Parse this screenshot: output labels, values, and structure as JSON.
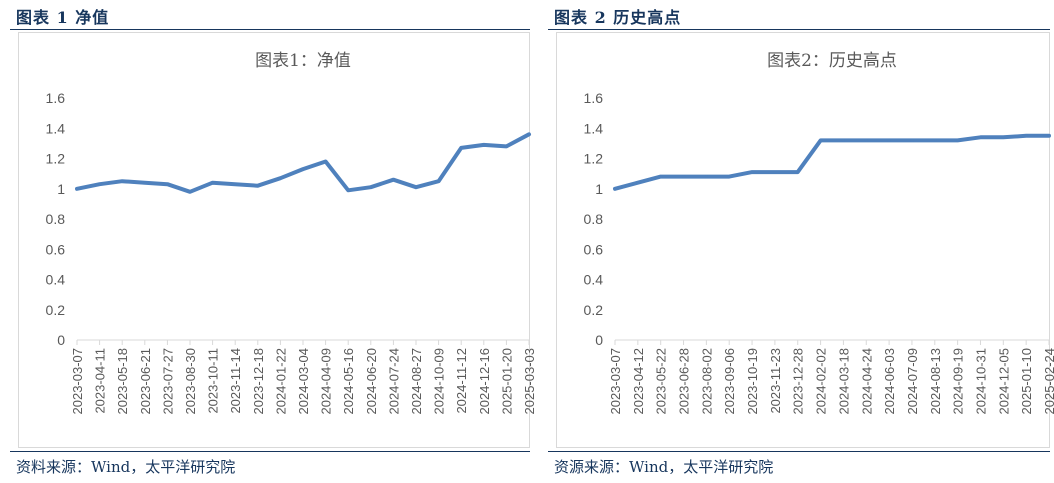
{
  "panels": [
    {
      "figure_label": "图表 1 净值",
      "source": "资料来源：Wind，太平洋研究院"
    },
    {
      "figure_label": "图表 2 历史高点",
      "source": "资源来源：Wind，太平洋研究院"
    }
  ],
  "chart_data": [
    {
      "type": "line",
      "title": "图表1：净值",
      "xlabel": "",
      "ylabel": "",
      "ylim": [
        0,
        1.6
      ],
      "yticks": [
        "0",
        "0.2",
        "0.4",
        "0.6",
        "0.8",
        "1",
        "1.2",
        "1.4",
        "1.6"
      ],
      "grid": false,
      "line_color": "#4f81bd",
      "x": [
        "2023-03-07",
        "2023-04-11",
        "2023-05-18",
        "2023-06-21",
        "2023-07-27",
        "2023-08-30",
        "2023-10-11",
        "2023-11-14",
        "2023-12-18",
        "2024-01-22",
        "2024-03-04",
        "2024-04-09",
        "2024-05-16",
        "2024-06-20",
        "2024-07-24",
        "2024-08-27",
        "2024-10-09",
        "2024-11-12",
        "2024-12-16",
        "2025-01-20",
        "2025-03-03"
      ],
      "series": [
        {
          "values": [
            1.0,
            1.03,
            1.05,
            1.04,
            1.03,
            0.98,
            1.04,
            1.03,
            1.02,
            1.07,
            1.13,
            1.18,
            0.99,
            1.01,
            1.06,
            1.01,
            1.05,
            1.27,
            1.29,
            1.28,
            1.36
          ]
        }
      ]
    },
    {
      "type": "line",
      "title": "图表2：历史高点",
      "xlabel": "",
      "ylabel": "",
      "ylim": [
        0,
        1.6
      ],
      "yticks": [
        "0",
        "0.2",
        "0.4",
        "0.6",
        "0.8",
        "1",
        "1.2",
        "1.4",
        "1.6"
      ],
      "grid": false,
      "line_color": "#4f81bd",
      "x": [
        "2023-03-07",
        "2023-04-12",
        "2023-05-22",
        "2023-06-28",
        "2023-08-02",
        "2023-09-06",
        "2023-10-19",
        "2023-11-23",
        "2023-12-28",
        "2024-02-02",
        "2024-03-18",
        "2024-04-24",
        "2024-06-03",
        "2024-07-09",
        "2024-08-13",
        "2024-09-19",
        "2024-10-31",
        "2024-12-05",
        "2025-01-10",
        "2025-02-24"
      ],
      "series": [
        {
          "values": [
            1.0,
            1.04,
            1.08,
            1.08,
            1.08,
            1.08,
            1.11,
            1.11,
            1.11,
            1.32,
            1.32,
            1.32,
            1.32,
            1.32,
            1.32,
            1.32,
            1.34,
            1.34,
            1.35,
            1.35
          ]
        }
      ]
    }
  ]
}
